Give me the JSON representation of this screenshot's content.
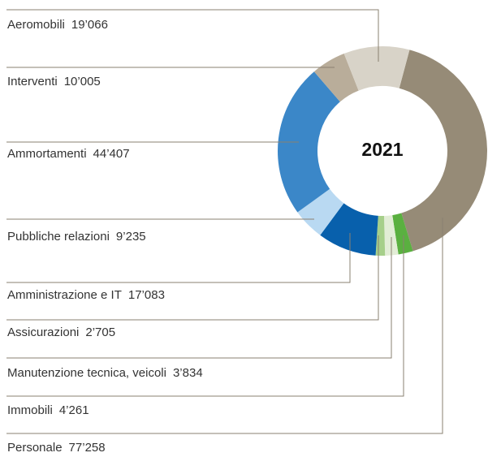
{
  "chart_data": {
    "type": "donut",
    "center_label": "2021",
    "categories": [
      "Aeromobili",
      "Interventi",
      "Ammortamenti",
      "Pubbliche relazioni",
      "Amministrazione e IT",
      "Assicurazioni",
      "Manutenzione tecnica, veicoli",
      "Immobili",
      "Personale"
    ],
    "values": [
      19066,
      10005,
      44407,
      9235,
      17083,
      2705,
      3834,
      4261,
      77258
    ],
    "value_labels": [
      "19’066",
      "10’005",
      "44’407",
      "9’235",
      "17’083",
      "2’705",
      "3’834",
      "4’261",
      "77’258"
    ],
    "colors": [
      "#d8d3c8",
      "#b9ad9a",
      "#3b87c8",
      "#b9d9f2",
      "#0860ac",
      "#a6cf8a",
      "#e2edd6",
      "#5ab040",
      "#968b77"
    ]
  }
}
